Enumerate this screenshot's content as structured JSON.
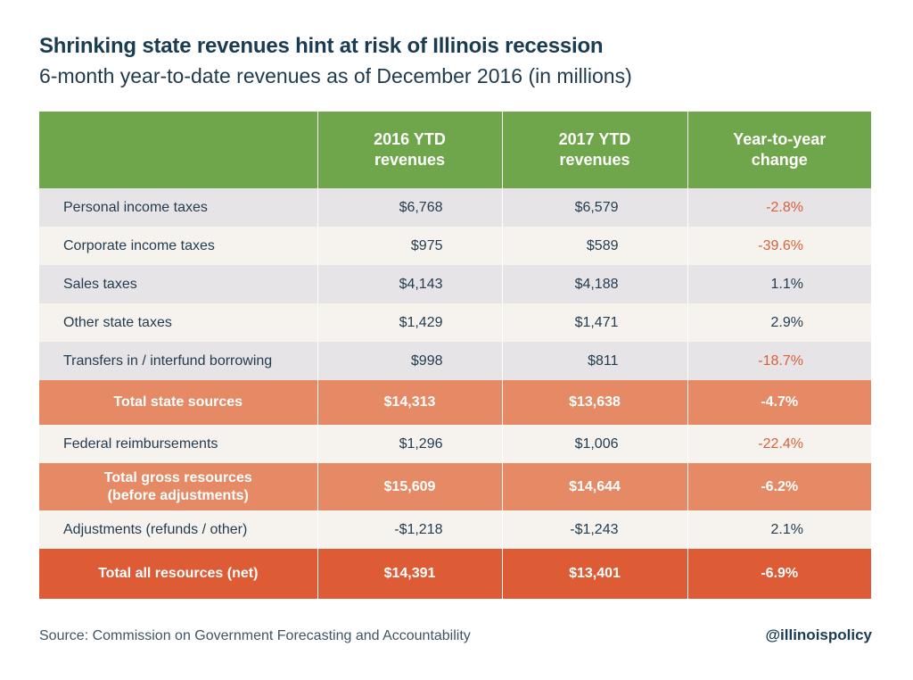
{
  "title": "Shrinking state revenues hint at risk of Illinois recession",
  "subtitle": "6-month year-to-date revenues as of December 2016 (in millions)",
  "source": "Source: Commission on Government Forecasting and Accountability",
  "handle": "@illinoispolicy",
  "colors": {
    "header_green": "#6fa64b",
    "total_orange": "#e58a65",
    "grand_total_orange": "#dd5b35",
    "negative_text": "#d9603a"
  },
  "chart_data": {
    "type": "table",
    "columns": [
      "",
      "2016 YTD revenues",
      "2017 YTD revenues",
      "Year-to-year change"
    ],
    "header": {
      "col1_line1": "2016 YTD",
      "col1_line2": "revenues",
      "col2_line1": "2017 YTD",
      "col2_line2": "revenues",
      "col3_line1": "Year-to-year",
      "col3_line2": "change"
    },
    "rows": [
      {
        "label": "Personal income taxes",
        "y2016": "$6,768",
        "y2017": "$6,579",
        "change": "-2.8%"
      },
      {
        "label": "Corporate income taxes",
        "y2016": "$975",
        "y2017": "$589",
        "change": "-39.6%"
      },
      {
        "label": "Sales taxes",
        "y2016": "$4,143",
        "y2017": "$4,188",
        "change": "1.1%"
      },
      {
        "label": "Other state taxes",
        "y2016": "$1,429",
        "y2017": "$1,471",
        "change": "2.9%"
      },
      {
        "label": "Transfers in / interfund borrowing",
        "y2016": "$998",
        "y2017": "$811",
        "change": "-18.7%"
      },
      {
        "label": "Total state sources",
        "y2016": "$14,313",
        "y2017": "$13,638",
        "change": "-4.7%"
      },
      {
        "label": "Federal reimbursements",
        "y2016": "$1,296",
        "y2017": "$1,006",
        "change": "-22.4%"
      },
      {
        "label_line1": "Total gross resources",
        "label_line2": "(before adjustments)",
        "y2016": "$15,609",
        "y2017": "$14,644",
        "change": "-6.2%"
      },
      {
        "label": "Adjustments (refunds / other)",
        "y2016": "-$1,218",
        "y2017": "-$1,243",
        "change": "2.1%"
      },
      {
        "label": "Total all resources (net)",
        "y2016": "$14,391",
        "y2017": "$13,401",
        "change": "-6.9%"
      }
    ]
  }
}
